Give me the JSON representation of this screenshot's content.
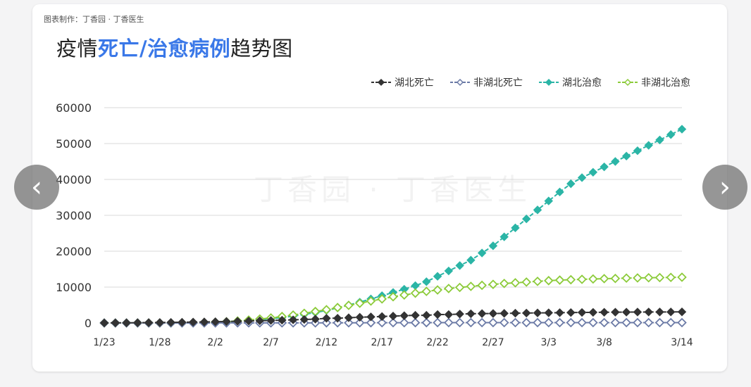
{
  "header": {
    "credit": "图表制作：丁香园 · 丁香医生",
    "title_pre": "疫情",
    "title_hl": "死亡/治愈病例",
    "title_post": "趋势图"
  },
  "watermark": "丁香园 · 丁香医生",
  "nav": {
    "prev": "‹",
    "next": "›"
  },
  "colors": {
    "hubei_death": "#333333",
    "non_hubei_death": "#6b7aa6",
    "hubei_recovered": "#2bb5a6",
    "non_hubei_recovered": "#8ccb3a"
  },
  "chart_data": {
    "type": "line",
    "x_start": "1/23",
    "x_tick_labels": [
      "1/23",
      "1/28",
      "2/2",
      "2/7",
      "2/12",
      "2/17",
      "2/22",
      "2/27",
      "3/3",
      "3/8",
      "3/14"
    ],
    "ylim": [
      0,
      60000
    ],
    "y_ticks": [
      0,
      10000,
      20000,
      30000,
      40000,
      50000,
      60000
    ],
    "grid": true,
    "legend_position": "top-right",
    "series": [
      {
        "name": "湖北死亡",
        "color": "#333333",
        "marker": "filled-diamond",
        "values": [
          24,
          39,
          52,
          76,
          100,
          125,
          162,
          204,
          249,
          294,
          350,
          414,
          479,
          549,
          618,
          699,
          780,
          871,
          974,
          1068,
          1310,
          1318,
          1457,
          1596,
          1696,
          1789,
          1921,
          2029,
          2144,
          2144,
          2346,
          2346,
          2495,
          2563,
          2615,
          2641,
          2682,
          2727,
          2761,
          2803,
          2835,
          2871,
          2902,
          2931,
          2959,
          2986,
          3008,
          3024,
          3046,
          3056,
          3062,
          3075,
          3085
        ]
      },
      {
        "name": "非湖北死亡",
        "color": "#6b7aa6",
        "marker": "hollow-diamond",
        "values": [
          1,
          2,
          4,
          5,
          6,
          7,
          8,
          9,
          10,
          11,
          13,
          14,
          17,
          19,
          20,
          23,
          25,
          27,
          31,
          33,
          39,
          45,
          51,
          57,
          63,
          70,
          77,
          81,
          84,
          87,
          95,
          97,
          98,
          100,
          100,
          100,
          101,
          101,
          101,
          101,
          102,
          102,
          102,
          102,
          103,
          103,
          104,
          104,
          104,
          104,
          104,
          104,
          104
        ]
      },
      {
        "name": "湖北治愈",
        "color": "#2bb5a6",
        "marker": "filled-diamond",
        "values": [
          0,
          0,
          0,
          0,
          0,
          0,
          0,
          50,
          100,
          150,
          250,
          350,
          500,
          700,
          900,
          1200,
          1500,
          1900,
          2400,
          2900,
          3500,
          4200,
          5000,
          5800,
          6700,
          7600,
          8500,
          9400,
          10400,
          11500,
          13000,
          14500,
          16000,
          17500,
          19500,
          21500,
          24000,
          26500,
          29000,
          31500,
          34000,
          36500,
          38800,
          40500,
          42000,
          43500,
          45000,
          46500,
          48000,
          49500,
          51000,
          52500,
          54000
        ]
      },
      {
        "name": "非湖北治愈",
        "color": "#8ccb3a",
        "marker": "hollow-diamond",
        "values": [
          0,
          0,
          0,
          0,
          0,
          0,
          0,
          20,
          50,
          100,
          200,
          350,
          550,
          800,
          1100,
          1400,
          1800,
          2200,
          2700,
          3200,
          3700,
          4300,
          4900,
          5500,
          6100,
          6700,
          7300,
          7800,
          8300,
          8800,
          9200,
          9600,
          9900,
          10200,
          10500,
          10750,
          11000,
          11200,
          11400,
          11600,
          11800,
          11950,
          12050,
          12150,
          12250,
          12350,
          12400,
          12500,
          12550,
          12600,
          12650,
          12700,
          12750
        ]
      }
    ]
  }
}
